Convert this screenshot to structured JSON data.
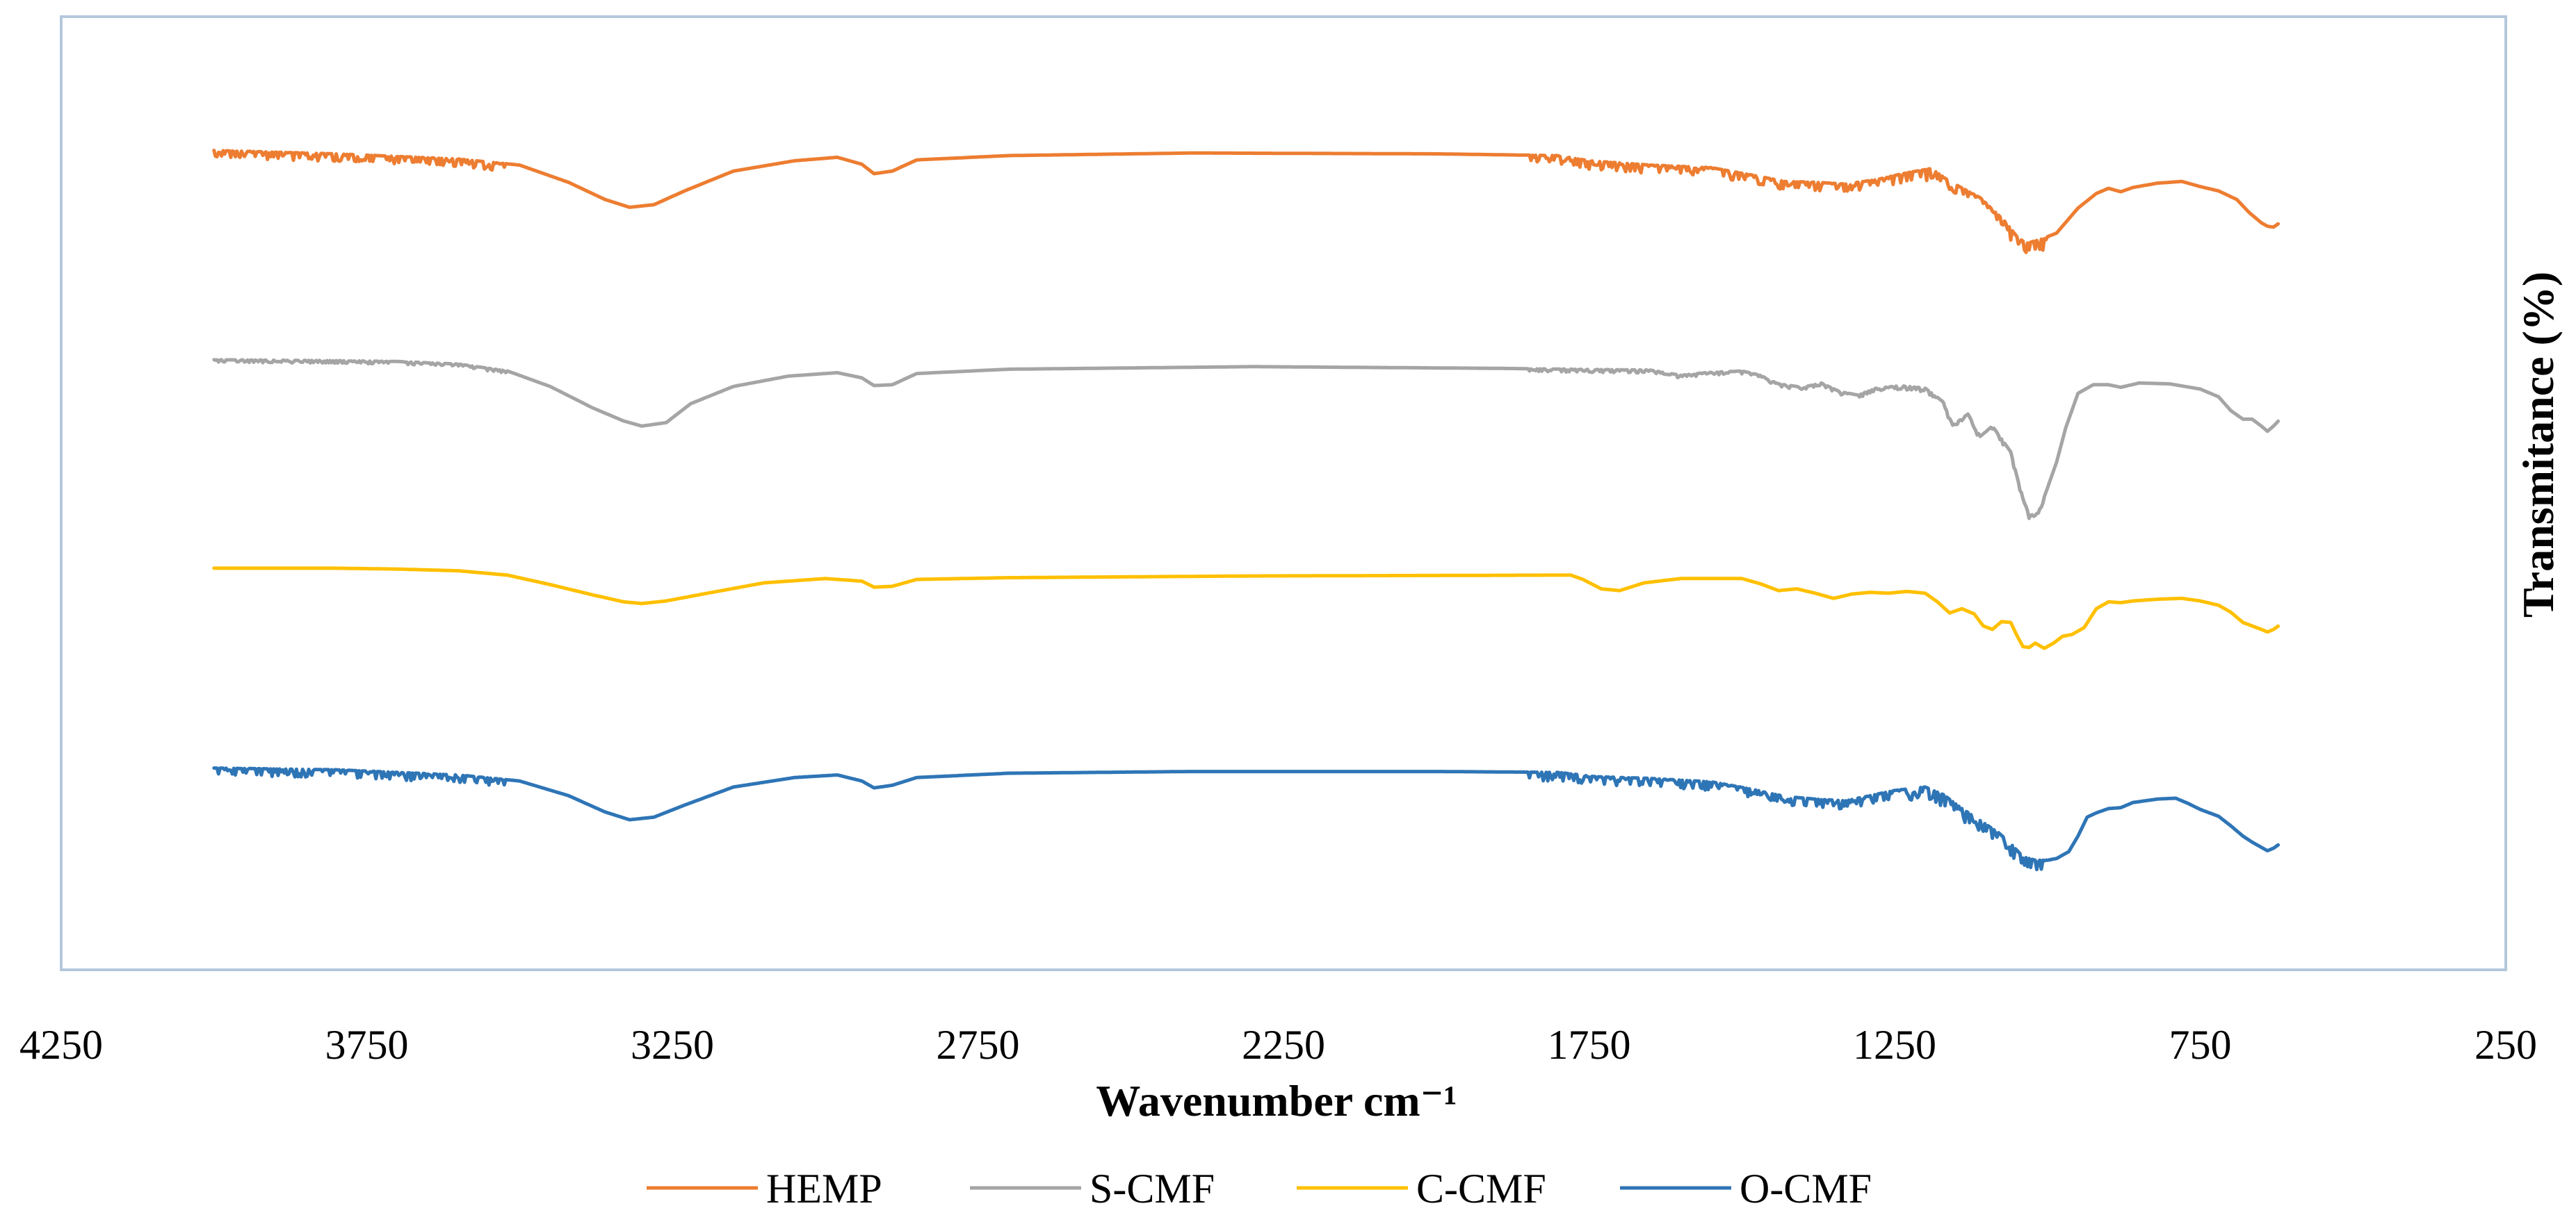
{
  "chart_data": {
    "type": "line",
    "title": "",
    "xlabel": "Wavenumber cm⁻¹",
    "ylabel": "Transmitance (%)",
    "xlim": [
      4250,
      250
    ],
    "x_reversed": true,
    "ylim": [
      0,
      100
    ],
    "x_ticks": [
      4250,
      3750,
      3250,
      2750,
      2250,
      1750,
      1250,
      750,
      250
    ],
    "grid": false,
    "legend_position": "bottom",
    "series": [
      {
        "name": "HEMP",
        "color": "#ED7D31",
        "noise": 1.0,
        "points": [
          [
            4000,
            90.2
          ],
          [
            3800,
            89.8
          ],
          [
            3700,
            89.5
          ],
          [
            3600,
            89.2
          ],
          [
            3500,
            88.5
          ],
          [
            3420,
            86.5
          ],
          [
            3360,
            84.5
          ],
          [
            3320,
            83.6
          ],
          [
            3280,
            83.9
          ],
          [
            3230,
            85.5
          ],
          [
            3150,
            87.8
          ],
          [
            3050,
            89.0
          ],
          [
            2980,
            89.4
          ],
          [
            2940,
            88.6
          ],
          [
            2920,
            87.5
          ],
          [
            2890,
            87.8
          ],
          [
            2850,
            89.1
          ],
          [
            2700,
            89.6
          ],
          [
            2400,
            89.9
          ],
          [
            2000,
            89.8
          ],
          [
            1800,
            89.6
          ],
          [
            1750,
            89.0
          ],
          [
            1650,
            88.5
          ],
          [
            1550,
            88.2
          ],
          [
            1480,
            87.3
          ],
          [
            1430,
            86.6
          ],
          [
            1380,
            86.5
          ],
          [
            1330,
            86.3
          ],
          [
            1280,
            86.8
          ],
          [
            1230,
            87.6
          ],
          [
            1190,
            88.1
          ],
          [
            1160,
            86.6
          ],
          [
            1110,
            84.7
          ],
          [
            1070,
            82.0
          ],
          [
            1050,
            80.2
          ],
          [
            1035,
            79.4
          ],
          [
            1010,
            79.9
          ],
          [
            985,
            80.6
          ],
          [
            950,
            83.5
          ],
          [
            920,
            85.2
          ],
          [
            900,
            85.8
          ],
          [
            880,
            85.4
          ],
          [
            860,
            85.9
          ],
          [
            820,
            86.4
          ],
          [
            780,
            86.6
          ],
          [
            750,
            86.0
          ],
          [
            720,
            85.5
          ],
          [
            690,
            84.5
          ],
          [
            670,
            83.0
          ],
          [
            650,
            81.8
          ],
          [
            640,
            81.4
          ],
          [
            630,
            81.3
          ],
          [
            622,
            81.7
          ]
        ]
      },
      {
        "name": "S-CMF",
        "color": "#A5A5A5",
        "noise": 0.35,
        "points": [
          [
            4000,
            65.9
          ],
          [
            3800,
            65.8
          ],
          [
            3700,
            65.7
          ],
          [
            3600,
            65.4
          ],
          [
            3520,
            64.6
          ],
          [
            3450,
            62.8
          ],
          [
            3380,
            60.3
          ],
          [
            3330,
            58.8
          ],
          [
            3300,
            58.2
          ],
          [
            3260,
            58.6
          ],
          [
            3220,
            60.8
          ],
          [
            3150,
            62.8
          ],
          [
            3060,
            64.0
          ],
          [
            2980,
            64.4
          ],
          [
            2940,
            63.8
          ],
          [
            2920,
            62.9
          ],
          [
            2890,
            63.0
          ],
          [
            2850,
            64.3
          ],
          [
            2700,
            64.8
          ],
          [
            2300,
            65.1
          ],
          [
            1900,
            64.9
          ],
          [
            1650,
            64.7
          ],
          [
            1600,
            64.1
          ],
          [
            1560,
            64.4
          ],
          [
            1500,
            64.6
          ],
          [
            1470,
            64.1
          ],
          [
            1440,
            63.1
          ],
          [
            1400,
            62.7
          ],
          [
            1370,
            63.2
          ],
          [
            1340,
            62.2
          ],
          [
            1310,
            61.8
          ],
          [
            1280,
            62.6
          ],
          [
            1240,
            62.9
          ],
          [
            1200,
            62.6
          ],
          [
            1170,
            61.0
          ],
          [
            1155,
            58.3
          ],
          [
            1130,
            59.6
          ],
          [
            1110,
            57.0
          ],
          [
            1090,
            58.2
          ],
          [
            1060,
            55.2
          ],
          [
            1045,
            51.0
          ],
          [
            1030,
            47.8
          ],
          [
            1015,
            48.1
          ],
          [
            1000,
            51.0
          ],
          [
            985,
            54.0
          ],
          [
            970,
            58.0
          ],
          [
            950,
            62.0
          ],
          [
            925,
            63.0
          ],
          [
            900,
            63.0
          ],
          [
            880,
            62.7
          ],
          [
            850,
            63.2
          ],
          [
            800,
            63.1
          ],
          [
            750,
            62.5
          ],
          [
            720,
            61.6
          ],
          [
            700,
            60.0
          ],
          [
            680,
            59.0
          ],
          [
            665,
            59.0
          ],
          [
            650,
            58.2
          ],
          [
            640,
            57.6
          ],
          [
            630,
            58.2
          ],
          [
            622,
            58.8
          ]
        ]
      },
      {
        "name": "C-CMF",
        "color": "#FFC000",
        "noise": 0,
        "points": [
          [
            4000,
            41.7
          ],
          [
            3800,
            41.7
          ],
          [
            3700,
            41.6
          ],
          [
            3600,
            41.4
          ],
          [
            3520,
            40.9
          ],
          [
            3450,
            39.8
          ],
          [
            3380,
            38.6
          ],
          [
            3330,
            37.8
          ],
          [
            3300,
            37.6
          ],
          [
            3260,
            37.9
          ],
          [
            3200,
            38.7
          ],
          [
            3100,
            40.0
          ],
          [
            3000,
            40.5
          ],
          [
            2940,
            40.2
          ],
          [
            2920,
            39.5
          ],
          [
            2890,
            39.6
          ],
          [
            2850,
            40.4
          ],
          [
            2700,
            40.6
          ],
          [
            2300,
            40.8
          ],
          [
            1780,
            40.9
          ],
          [
            1760,
            40.4
          ],
          [
            1730,
            39.3
          ],
          [
            1700,
            39.1
          ],
          [
            1660,
            40.0
          ],
          [
            1600,
            40.5
          ],
          [
            1500,
            40.5
          ],
          [
            1470,
            39.9
          ],
          [
            1440,
            39.1
          ],
          [
            1410,
            39.3
          ],
          [
            1380,
            38.8
          ],
          [
            1350,
            38.2
          ],
          [
            1320,
            38.7
          ],
          [
            1290,
            38.9
          ],
          [
            1260,
            38.8
          ],
          [
            1230,
            39.0
          ],
          [
            1200,
            38.8
          ],
          [
            1180,
            37.8
          ],
          [
            1160,
            36.5
          ],
          [
            1140,
            37.0
          ],
          [
            1120,
            36.4
          ],
          [
            1105,
            35.0
          ],
          [
            1090,
            34.6
          ],
          [
            1075,
            35.5
          ],
          [
            1060,
            35.4
          ],
          [
            1050,
            33.9
          ],
          [
            1040,
            32.6
          ],
          [
            1030,
            32.5
          ],
          [
            1020,
            33.0
          ],
          [
            1005,
            32.4
          ],
          [
            990,
            33.0
          ],
          [
            975,
            33.8
          ],
          [
            960,
            34.0
          ],
          [
            940,
            34.8
          ],
          [
            920,
            37.0
          ],
          [
            900,
            37.8
          ],
          [
            880,
            37.7
          ],
          [
            860,
            37.9
          ],
          [
            820,
            38.1
          ],
          [
            780,
            38.2
          ],
          [
            750,
            37.9
          ],
          [
            720,
            37.4
          ],
          [
            700,
            36.6
          ],
          [
            680,
            35.4
          ],
          [
            665,
            35.0
          ],
          [
            650,
            34.6
          ],
          [
            640,
            34.3
          ],
          [
            630,
            34.6
          ],
          [
            622,
            35.0
          ]
        ]
      },
      {
        "name": "O-CMF",
        "color": "#2E75B6",
        "noise": 1.0,
        "points": [
          [
            4000,
            18.5
          ],
          [
            3800,
            18.3
          ],
          [
            3700,
            18.0
          ],
          [
            3600,
            17.7
          ],
          [
            3500,
            17.0
          ],
          [
            3420,
            15.3
          ],
          [
            3360,
            13.4
          ],
          [
            3320,
            12.5
          ],
          [
            3280,
            12.8
          ],
          [
            3230,
            14.2
          ],
          [
            3150,
            16.3
          ],
          [
            3050,
            17.4
          ],
          [
            2980,
            17.7
          ],
          [
            2940,
            17.0
          ],
          [
            2920,
            16.2
          ],
          [
            2890,
            16.5
          ],
          [
            2850,
            17.4
          ],
          [
            2700,
            17.9
          ],
          [
            2400,
            18.1
          ],
          [
            2000,
            18.1
          ],
          [
            1800,
            18.0
          ],
          [
            1740,
            17.5
          ],
          [
            1650,
            17.3
          ],
          [
            1550,
            16.9
          ],
          [
            1480,
            16.0
          ],
          [
            1430,
            15.2
          ],
          [
            1380,
            14.9
          ],
          [
            1330,
            14.7
          ],
          [
            1290,
            15.3
          ],
          [
            1250,
            15.9
          ],
          [
            1200,
            16.3
          ],
          [
            1170,
            15.4
          ],
          [
            1140,
            13.8
          ],
          [
            1110,
            12.4
          ],
          [
            1080,
            11.0
          ],
          [
            1060,
            9.7
          ],
          [
            1040,
            8.2
          ],
          [
            1020,
            7.8
          ],
          [
            1000,
            7.8
          ],
          [
            985,
            8.0
          ],
          [
            965,
            8.8
          ],
          [
            950,
            10.6
          ],
          [
            935,
            12.8
          ],
          [
            920,
            13.3
          ],
          [
            900,
            13.8
          ],
          [
            880,
            13.9
          ],
          [
            860,
            14.5
          ],
          [
            820,
            14.9
          ],
          [
            790,
            15.0
          ],
          [
            770,
            14.4
          ],
          [
            750,
            13.7
          ],
          [
            720,
            12.9
          ],
          [
            700,
            11.8
          ],
          [
            680,
            10.6
          ],
          [
            665,
            9.9
          ],
          [
            650,
            9.3
          ],
          [
            640,
            8.9
          ],
          [
            630,
            9.2
          ],
          [
            622,
            9.6
          ]
        ]
      }
    ]
  }
}
